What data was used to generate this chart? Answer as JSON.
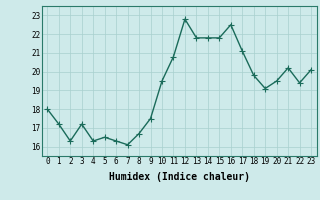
{
  "x": [
    0,
    1,
    2,
    3,
    4,
    5,
    6,
    7,
    8,
    9,
    10,
    11,
    12,
    13,
    14,
    15,
    16,
    17,
    18,
    19,
    20,
    21,
    22,
    23
  ],
  "y": [
    18.0,
    17.2,
    16.3,
    17.2,
    16.3,
    16.5,
    16.3,
    16.1,
    16.7,
    17.5,
    19.5,
    20.8,
    22.8,
    21.8,
    21.8,
    21.8,
    22.5,
    21.1,
    19.8,
    19.1,
    19.5,
    20.2,
    19.4,
    20.1
  ],
  "xlim": [
    -0.5,
    23.5
  ],
  "ylim": [
    15.5,
    23.5
  ],
  "yticks": [
    16,
    17,
    18,
    19,
    20,
    21,
    22,
    23
  ],
  "xticks": [
    0,
    1,
    2,
    3,
    4,
    5,
    6,
    7,
    8,
    9,
    10,
    11,
    12,
    13,
    14,
    15,
    16,
    17,
    18,
    19,
    20,
    21,
    22,
    23
  ],
  "xlabel": "Humidex (Indice chaleur)",
  "line_color": "#1a6b5a",
  "marker_color": "#1a6b5a",
  "bg_color": "#ceeaea",
  "grid_color": "#a8d0ce",
  "xlabel_fontsize": 7,
  "tick_fontsize": 5.5,
  "line_width": 1.0,
  "marker_size": 2.2
}
